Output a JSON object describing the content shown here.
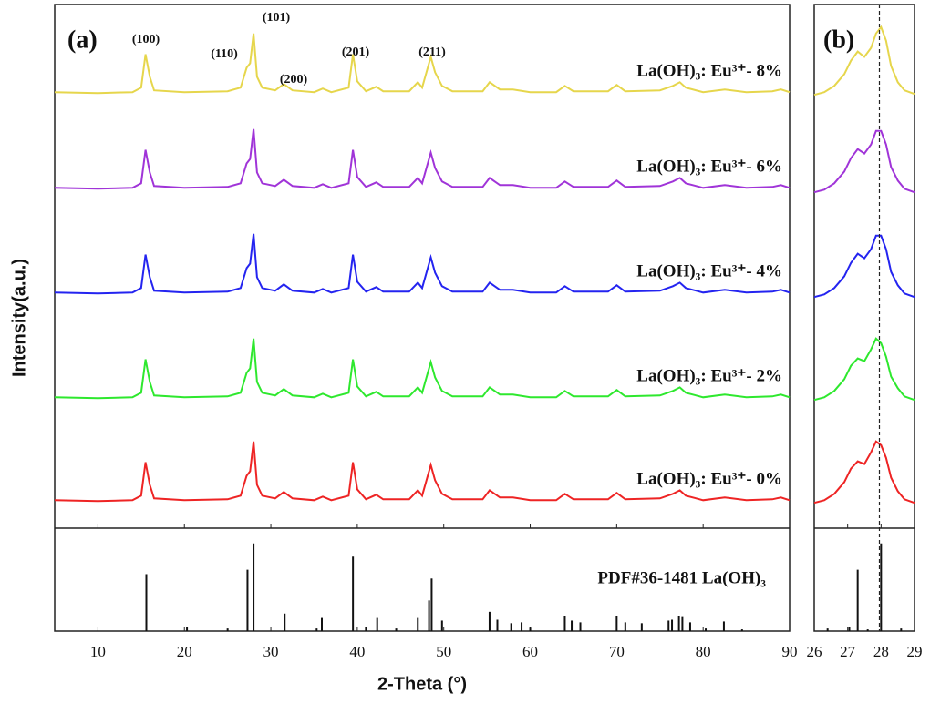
{
  "chart_data": [
    {
      "type": "line",
      "panel_label": "(a)",
      "xlabel": "2-Theta (°)",
      "ylabel": "Intensity(a.u.)",
      "xlim": [
        5,
        90
      ],
      "xticks": [
        10,
        20,
        30,
        40,
        50,
        60,
        70,
        80,
        90
      ],
      "ylim": [
        0,
        575
      ],
      "annotations": [
        "(100)",
        "(110)",
        "(101)",
        "(200)",
        "(201)",
        "(211)"
      ],
      "x": [
        5,
        10,
        14,
        15,
        15.5,
        16,
        16.5,
        20,
        25,
        26.5,
        27.2,
        27.6,
        28,
        28.4,
        29,
        30.5,
        31.5,
        32.5,
        35,
        36,
        37,
        39,
        39.5,
        40,
        41,
        42.2,
        43,
        46,
        47,
        47.5,
        48.5,
        49,
        49.8,
        51,
        54.5,
        55.3,
        56.5,
        58,
        60,
        63,
        64,
        65,
        69,
        70,
        71,
        75,
        76.5,
        77.3,
        78,
        80,
        82.5,
        85,
        88,
        89,
        90
      ],
      "series": [
        {
          "name": "La(OH)₃: Eu³⁺- 8%",
          "color": "#e6d64c",
          "values": [
            483,
            482,
            483,
            488,
            525,
            500,
            485,
            483,
            484,
            488,
            510,
            515,
            548,
            500,
            488,
            485,
            492,
            485,
            483,
            487,
            483,
            488,
            525,
            495,
            484,
            489,
            484,
            484,
            494,
            488,
            522,
            505,
            490,
            484,
            484,
            494,
            486,
            486,
            483,
            483,
            490,
            484,
            484,
            491,
            484,
            485,
            490,
            494,
            488,
            483,
            486,
            483,
            484,
            486,
            483
          ]
        },
        {
          "name": "La(OH)₃: Eu³⁺- 6%",
          "color": "#a034d8",
          "values": [
            377,
            376,
            377,
            382,
            419,
            394,
            379,
            377,
            378,
            382,
            404,
            409,
            442,
            394,
            382,
            379,
            386,
            379,
            377,
            381,
            377,
            382,
            419,
            389,
            378,
            383,
            378,
            378,
            388,
            382,
            416,
            399,
            384,
            378,
            378,
            388,
            380,
            380,
            377,
            377,
            384,
            378,
            378,
            385,
            378,
            379,
            384,
            388,
            382,
            377,
            380,
            377,
            378,
            380,
            377
          ]
        },
        {
          "name": "La(OH)₃: Eu³⁺- 4%",
          "color": "#2424f0",
          "values": [
            261,
            260,
            261,
            266,
            303,
            278,
            263,
            261,
            262,
            266,
            288,
            293,
            326,
            278,
            266,
            263,
            270,
            263,
            261,
            265,
            261,
            266,
            303,
            273,
            262,
            267,
            262,
            262,
            272,
            266,
            300,
            283,
            268,
            262,
            262,
            272,
            264,
            264,
            261,
            261,
            268,
            262,
            262,
            269,
            262,
            263,
            268,
            272,
            266,
            261,
            264,
            261,
            262,
            264,
            261
          ]
        },
        {
          "name": "La(OH)₃: Eu³⁺- 2%",
          "color": "#2ee82e",
          "values": [
            145,
            144,
            145,
            150,
            187,
            162,
            147,
            145,
            146,
            150,
            172,
            177,
            210,
            162,
            150,
            147,
            154,
            147,
            145,
            149,
            145,
            150,
            187,
            157,
            146,
            151,
            146,
            146,
            156,
            150,
            184,
            167,
            152,
            146,
            146,
            156,
            148,
            148,
            145,
            145,
            152,
            146,
            146,
            153,
            146,
            147,
            152,
            156,
            150,
            145,
            148,
            145,
            146,
            148,
            145
          ]
        },
        {
          "name": "La(OH)₃: Eu³⁺- 0%",
          "color": "#ee2424",
          "values": [
            31,
            30,
            31,
            36,
            73,
            48,
            33,
            31,
            32,
            36,
            58,
            63,
            96,
            48,
            36,
            33,
            40,
            33,
            31,
            35,
            31,
            36,
            73,
            43,
            32,
            37,
            32,
            32,
            42,
            36,
            70,
            53,
            38,
            32,
            32,
            42,
            34,
            34,
            31,
            31,
            38,
            32,
            32,
            39,
            32,
            33,
            38,
            42,
            36,
            31,
            34,
            31,
            32,
            34,
            31
          ]
        }
      ],
      "reference": {
        "label": "PDF#36-1481 La(OH)₃",
        "ylim": [
          0,
          105
        ],
        "x": [
          15.6,
          20.3,
          25,
          27.3,
          28,
          31.6,
          35.3,
          35.9,
          39.5,
          41,
          42.3,
          44.5,
          47,
          48.3,
          48.6,
          49.8,
          55.3,
          56.2,
          57.8,
          59,
          60,
          64,
          64.8,
          65.8,
          70,
          71,
          72.9,
          76,
          76.4,
          77.2,
          77.6,
          78.5,
          80.3,
          82.4,
          84.5
        ],
        "values": [
          65,
          5,
          3,
          70,
          100,
          20,
          3,
          15,
          85,
          5,
          15,
          3,
          15,
          35,
          60,
          12,
          22,
          13,
          9,
          10,
          4,
          17,
          12,
          10,
          17,
          10,
          9,
          12,
          13,
          17,
          16,
          10,
          3,
          11,
          2
        ]
      }
    },
    {
      "type": "line",
      "panel_label": "(b)",
      "xlim": [
        26,
        29
      ],
      "xticks": [
        26,
        27,
        28,
        29
      ],
      "ylim": [
        0,
        575
      ],
      "vline": 27.95,
      "x": [
        26,
        26.3,
        26.6,
        26.9,
        27.1,
        27.3,
        27.5,
        27.7,
        27.85,
        28,
        28.15,
        28.3,
        28.5,
        28.7,
        29
      ],
      "series": [
        {
          "color": "#e6d64c",
          "values": [
            480,
            483,
            490,
            503,
            518,
            528,
            522,
            532,
            548,
            555,
            540,
            512,
            494,
            485,
            481
          ]
        },
        {
          "color": "#a034d8",
          "values": [
            372,
            375,
            382,
            395,
            410,
            420,
            415,
            425,
            440,
            440,
            425,
            400,
            385,
            376,
            372
          ]
        },
        {
          "color": "#2424f0",
          "values": [
            256,
            259,
            266,
            279,
            294,
            304,
            299,
            309,
            324,
            324,
            309,
            284,
            269,
            260,
            256
          ]
        },
        {
          "color": "#2ee82e",
          "values": [
            142,
            145,
            152,
            165,
            180,
            188,
            185,
            198,
            210,
            205,
            190,
            168,
            155,
            146,
            142
          ]
        },
        {
          "color": "#ee2424",
          "values": [
            28,
            31,
            38,
            51,
            66,
            74,
            71,
            84,
            96,
            92,
            78,
            56,
            41,
            32,
            28
          ]
        }
      ],
      "reference": {
        "ylim": [
          0,
          105
        ],
        "x": [
          26.4,
          27.05,
          27.3,
          27.6,
          28,
          28.6
        ],
        "values": [
          3,
          5,
          70,
          2,
          100,
          3
        ]
      }
    }
  ]
}
